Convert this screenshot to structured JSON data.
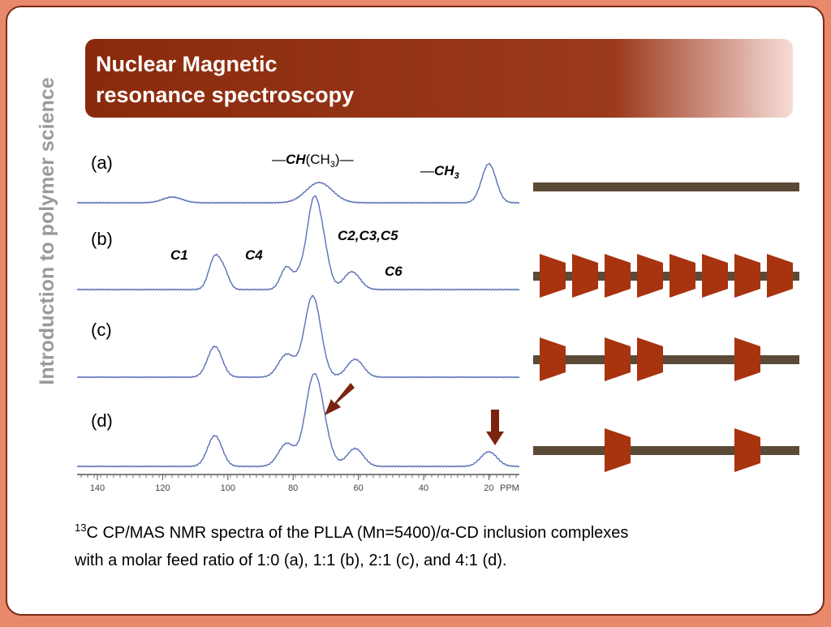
{
  "sidebar": "Introduction to polymer science",
  "header": {
    "title_lines": [
      "Nuclear Magnetic",
      "resonance spectroscopy"
    ]
  },
  "figure": {
    "panel_labels": [
      "(a)",
      "(b)",
      "(c)",
      "(d)"
    ],
    "peak_labels": {
      "ch": {
        "lead": "—",
        "bold": "CH",
        "group": "(CH",
        "sub": "3",
        "tail": ")—"
      },
      "ch3": {
        "lead": "—",
        "bold": "CH",
        "sub": "3"
      },
      "c235": "C2,C3,C5",
      "c1": "C1",
      "c4": "C4",
      "c6": "C6"
    },
    "axis_ticks": [
      "140",
      "120",
      "100",
      "80",
      "60",
      "40",
      "20"
    ],
    "axis_unit": "PPM"
  },
  "caption": {
    "sup": "13",
    "line1": "C CP/MAS NMR spectra of the PLLA (Mn=5400)/α-CD inclusion complexes",
    "line2": "with a molar feed ratio of 1:0 (a), 1:1 (b), 2:1 (c), and 4:1 (d)."
  }
}
